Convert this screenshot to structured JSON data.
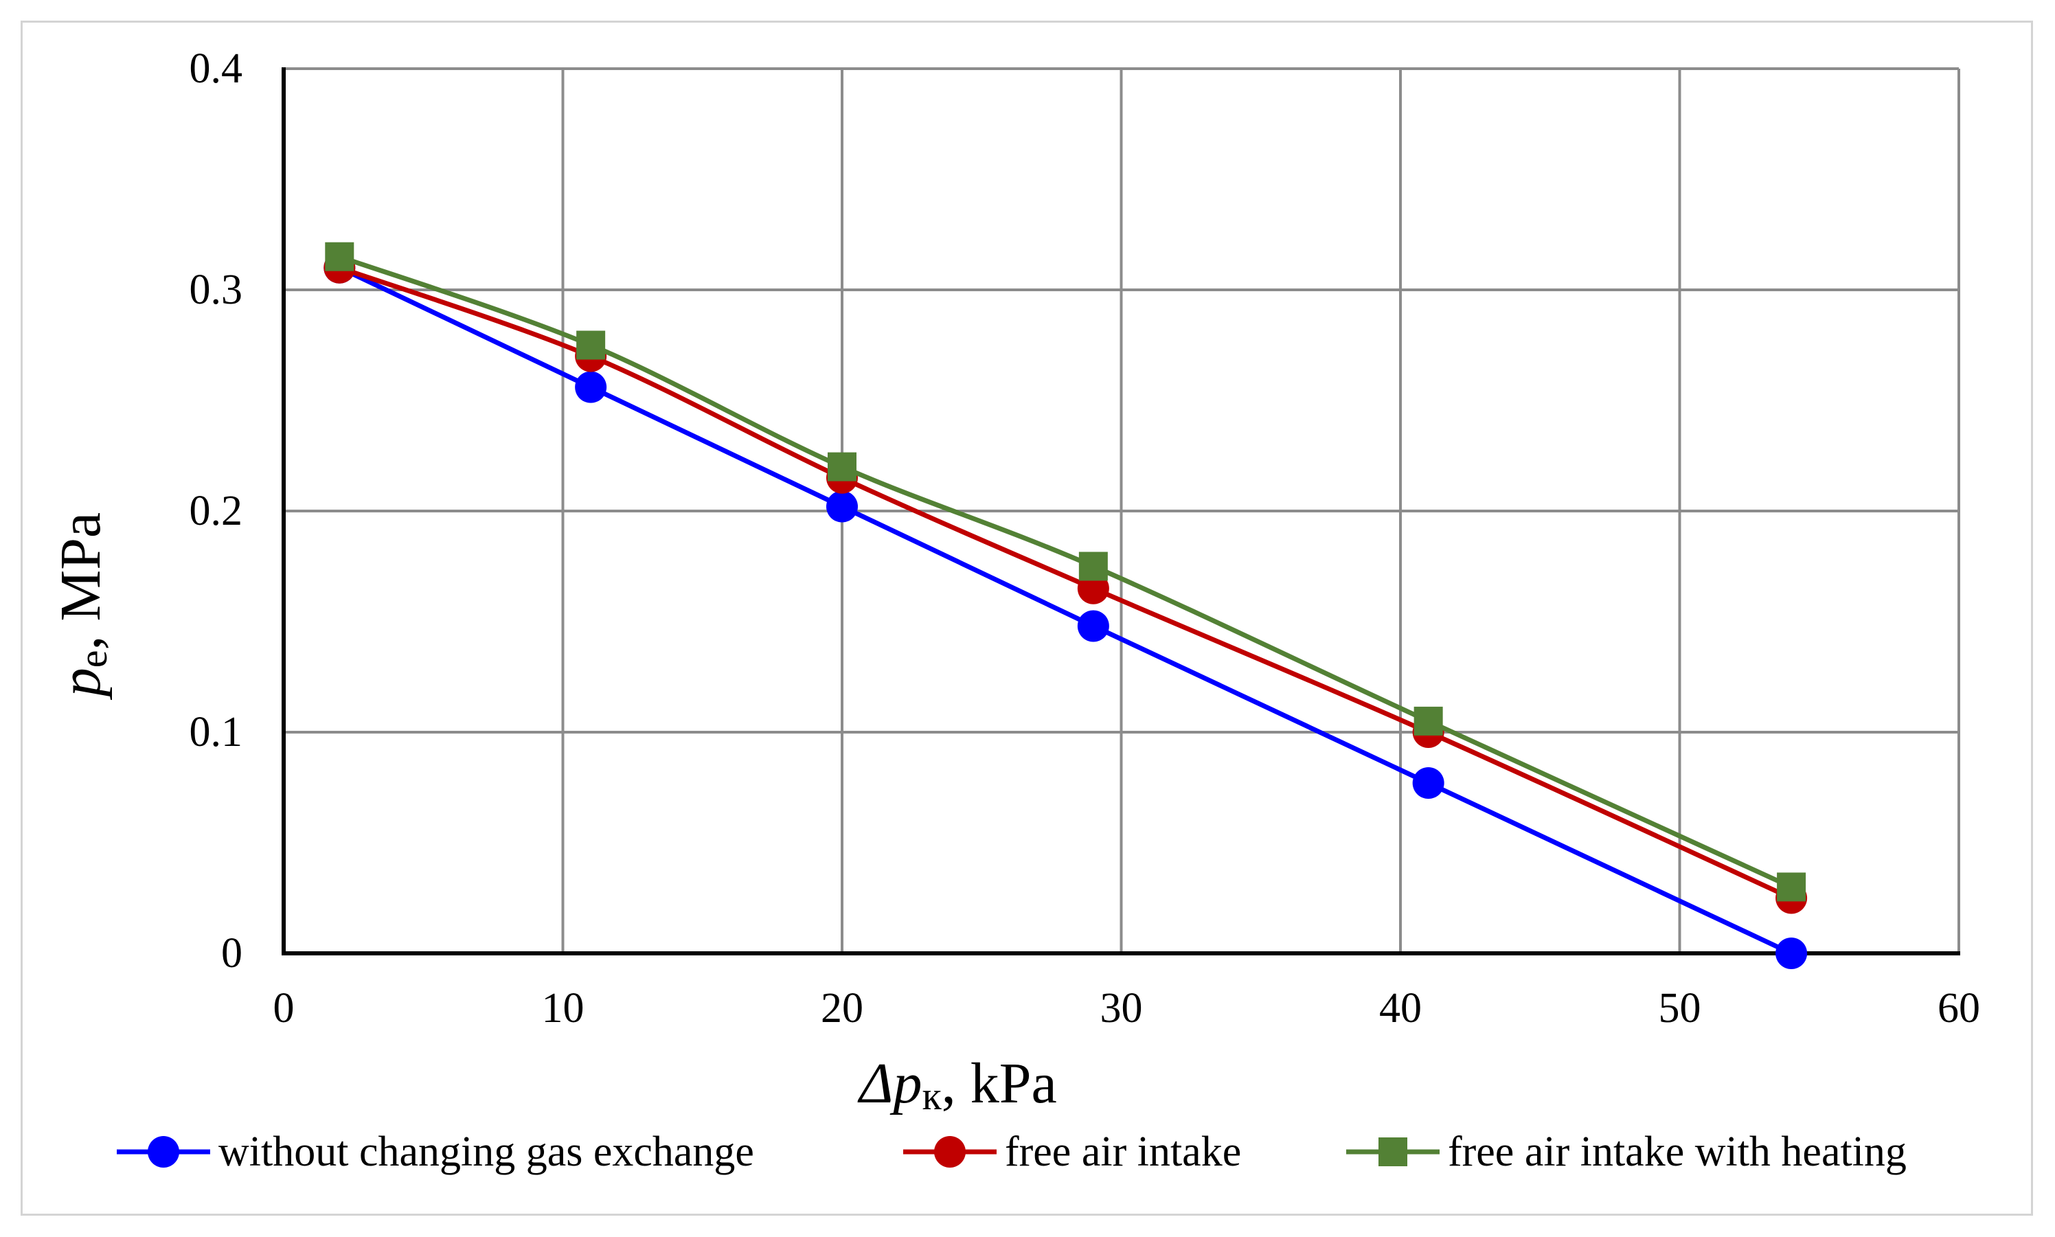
{
  "chart_data": {
    "type": "line",
    "title": "",
    "x": [
      2,
      11,
      20,
      29,
      41,
      54
    ],
    "xlim": [
      0,
      60
    ],
    "ylim": [
      0,
      0.4
    ],
    "xticks": [
      "0",
      "10",
      "20",
      "30",
      "40",
      "50",
      "60"
    ],
    "yticks": [
      "0",
      "0.1",
      "0.2",
      "0.3",
      "0.4"
    ],
    "xlabel": {
      "symbol": "Δp",
      "subscript": "к",
      "unit": ", kPa"
    },
    "ylabel": {
      "symbol": "p",
      "subscript": "e",
      "unit": ", MPa"
    },
    "grid": true,
    "legend_position": "bottom",
    "series": [
      {
        "name": "without changing gas exchange",
        "color": "#0000ff",
        "marker": "circle",
        "values": [
          0.31,
          0.256,
          0.202,
          0.148,
          0.077,
          0.0
        ]
      },
      {
        "name": "free air intake",
        "color": "#c00000",
        "marker": "circle",
        "values": [
          0.31,
          0.27,
          0.215,
          0.165,
          0.1,
          0.025
        ]
      },
      {
        "name": "free air intake with heating",
        "color": "#538135",
        "marker": "square",
        "values": [
          0.315,
          0.275,
          0.22,
          0.175,
          0.105,
          0.03
        ]
      }
    ]
  }
}
